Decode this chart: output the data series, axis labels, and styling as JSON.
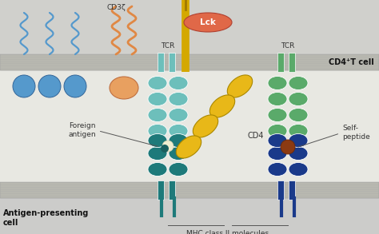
{
  "bg_color": "#d8d8d4",
  "tcell_bg": "#d0d0cc",
  "synapse_bg": "#e8e8e2",
  "apc_bg": "#ccccca",
  "membrane_color": "#b8b8b0",
  "title_cd4_t_cell": "CD4⁺T cell",
  "title_apc": "Antigen-presenting\ncell",
  "label_tcr1": "TCR",
  "label_tcr2": "TCR",
  "label_cd3z": "CD3ζ",
  "label_lck": "Lck",
  "label_cd4": "CD4",
  "label_foreign_antigen": "Foreign\nantigen",
  "label_self_peptide": "Self-\npeptide",
  "label_mhc": "MHC class II molecules",
  "teal_light": "#6dbfbb",
  "teal_dark": "#1e7a7a",
  "green_light": "#5aaa6a",
  "green_dark": "#2a7040",
  "yellow_color": "#e8b818",
  "blue_circle_color": "#5599cc",
  "blue_stem_color": "#4488bb",
  "orange_wavy": "#e08844",
  "orange_blob": "#e8a060",
  "navy_color": "#1a3a8a",
  "brown_color": "#8B3A12",
  "lck_color": "#e06848",
  "yellow_stem_color": "#d4a800",
  "white_dot_color": "#f0eed0",
  "teal_dark2": "#1a6060"
}
